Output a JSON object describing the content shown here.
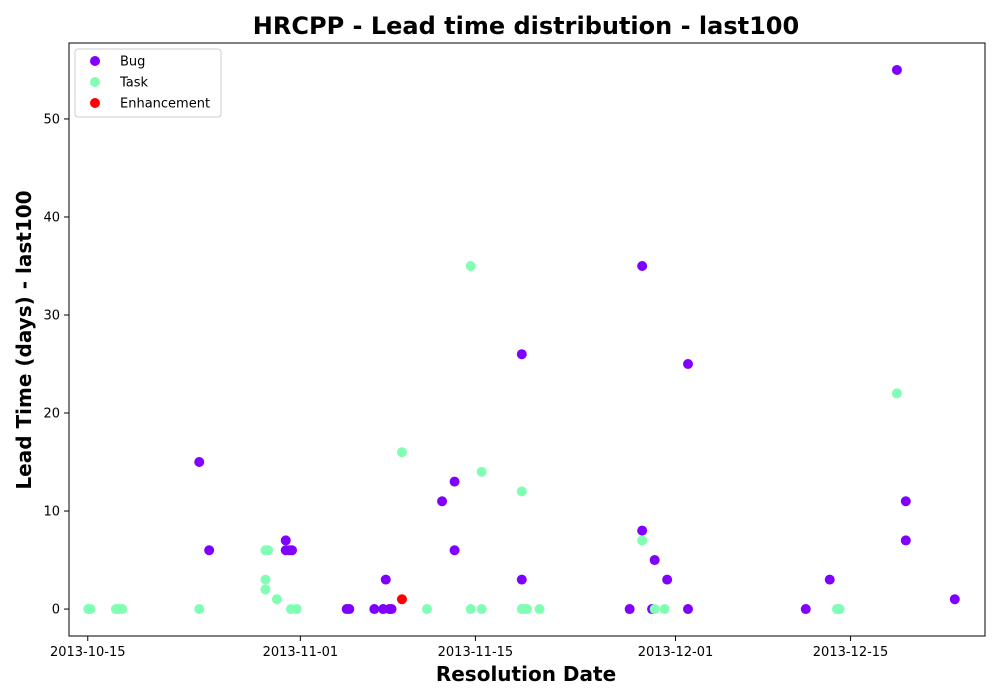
{
  "chart_data": {
    "type": "scatter",
    "title": "HRCPP - Lead time distribution - last100",
    "xlabel": "Resolution Date",
    "ylabel": "Lead Time (days) - last100",
    "x_type": "date",
    "xlim": [
      "2013-10-13T12:00",
      "2013-12-25T18:00"
    ],
    "ylim": [
      -2.75,
      57.75
    ],
    "x_ticks": [
      "2013-10-15",
      "2013-11-01",
      "2013-11-15",
      "2013-12-01",
      "2013-12-15"
    ],
    "y_ticks": [
      0,
      10,
      20,
      30,
      40,
      50
    ],
    "legend_position": "top-left",
    "grid": false,
    "series": [
      {
        "name": "Bug",
        "color": "#8000ff",
        "points": [
          {
            "x": "2013-10-23T22:00",
            "y": 15
          },
          {
            "x": "2013-10-24T17:00",
            "y": 6
          },
          {
            "x": "2013-10-30T20:00",
            "y": 7
          },
          {
            "x": "2013-10-30T20:00",
            "y": 6
          },
          {
            "x": "2013-10-31T03:00",
            "y": 6
          },
          {
            "x": "2013-10-31T08:00",
            "y": 6
          },
          {
            "x": "2013-11-04T17:00",
            "y": 0
          },
          {
            "x": "2013-11-04T22:00",
            "y": 0
          },
          {
            "x": "2013-11-06T22:00",
            "y": 0
          },
          {
            "x": "2013-11-07T15:00",
            "y": 0
          },
          {
            "x": "2013-11-08T03:00",
            "y": 0
          },
          {
            "x": "2013-11-08T07:00",
            "y": 0
          },
          {
            "x": "2013-11-07T20:00",
            "y": 3
          },
          {
            "x": "2013-11-12T08:00",
            "y": 11
          },
          {
            "x": "2013-11-13T08:00",
            "y": 13
          },
          {
            "x": "2013-11-13T08:00",
            "y": 6
          },
          {
            "x": "2013-11-18T17:00",
            "y": 26
          },
          {
            "x": "2013-11-18T17:00",
            "y": 3
          },
          {
            "x": "2013-11-27T08:00",
            "y": 0
          },
          {
            "x": "2013-11-28T08:00",
            "y": 35
          },
          {
            "x": "2013-11-28T08:00",
            "y": 8
          },
          {
            "x": "2013-11-29T03:00",
            "y": 0
          },
          {
            "x": "2013-11-29T08:00",
            "y": 5
          },
          {
            "x": "2013-11-30T08:00",
            "y": 3
          },
          {
            "x": "2013-12-02T00:00",
            "y": 25
          },
          {
            "x": "2013-12-02T00:00",
            "y": 0
          },
          {
            "x": "2013-12-11T10:00",
            "y": 0
          },
          {
            "x": "2013-12-13T08:00",
            "y": 3
          },
          {
            "x": "2013-12-18T17:00",
            "y": 55
          },
          {
            "x": "2013-12-19T10:00",
            "y": 11
          },
          {
            "x": "2013-12-19T10:00",
            "y": 7
          },
          {
            "x": "2013-12-23T08:00",
            "y": 1
          }
        ]
      },
      {
        "name": "Task",
        "color": "#80ffb4",
        "points": [
          {
            "x": "2013-10-15T01:00",
            "y": 0
          },
          {
            "x": "2013-10-15T05:00",
            "y": 0
          },
          {
            "x": "2013-10-17T06:00",
            "y": 0
          },
          {
            "x": "2013-10-17T11:00",
            "y": 0
          },
          {
            "x": "2013-10-17T18:00",
            "y": 0
          },
          {
            "x": "2013-10-23T22:00",
            "y": 0
          },
          {
            "x": "2013-10-29T05:00",
            "y": 6
          },
          {
            "x": "2013-10-29T10:00",
            "y": 6
          },
          {
            "x": "2013-10-29T05:00",
            "y": 3
          },
          {
            "x": "2013-10-29T05:00",
            "y": 2
          },
          {
            "x": "2013-10-30T03:00",
            "y": 1
          },
          {
            "x": "2013-10-31T06:00",
            "y": 0
          },
          {
            "x": "2013-10-31T17:00",
            "y": 0
          },
          {
            "x": "2013-11-09T03:00",
            "y": 16
          },
          {
            "x": "2013-11-11T03:00",
            "y": 0
          },
          {
            "x": "2013-11-14T15:00",
            "y": 35
          },
          {
            "x": "2013-11-14T15:00",
            "y": 0
          },
          {
            "x": "2013-11-15T12:00",
            "y": 14
          },
          {
            "x": "2013-11-15T12:00",
            "y": 0
          },
          {
            "x": "2013-11-18T17:00",
            "y": 12
          },
          {
            "x": "2013-11-18T17:00",
            "y": 0
          },
          {
            "x": "2013-11-18T22:00",
            "y": 0
          },
          {
            "x": "2013-11-19T03:00",
            "y": 0
          },
          {
            "x": "2013-11-20T03:00",
            "y": 0
          },
          {
            "x": "2013-11-28T08:00",
            "y": 7
          },
          {
            "x": "2013-11-29T08:00",
            "y": 0
          },
          {
            "x": "2013-11-30T03:00",
            "y": 0
          },
          {
            "x": "2013-12-13T22:00",
            "y": 0
          },
          {
            "x": "2013-12-14T03:00",
            "y": 0
          },
          {
            "x": "2013-12-18T17:00",
            "y": 22
          }
        ]
      },
      {
        "name": "Enhancement",
        "color": "#ff0000",
        "points": [
          {
            "x": "2013-11-09T03:00",
            "y": 1
          }
        ]
      }
    ]
  }
}
